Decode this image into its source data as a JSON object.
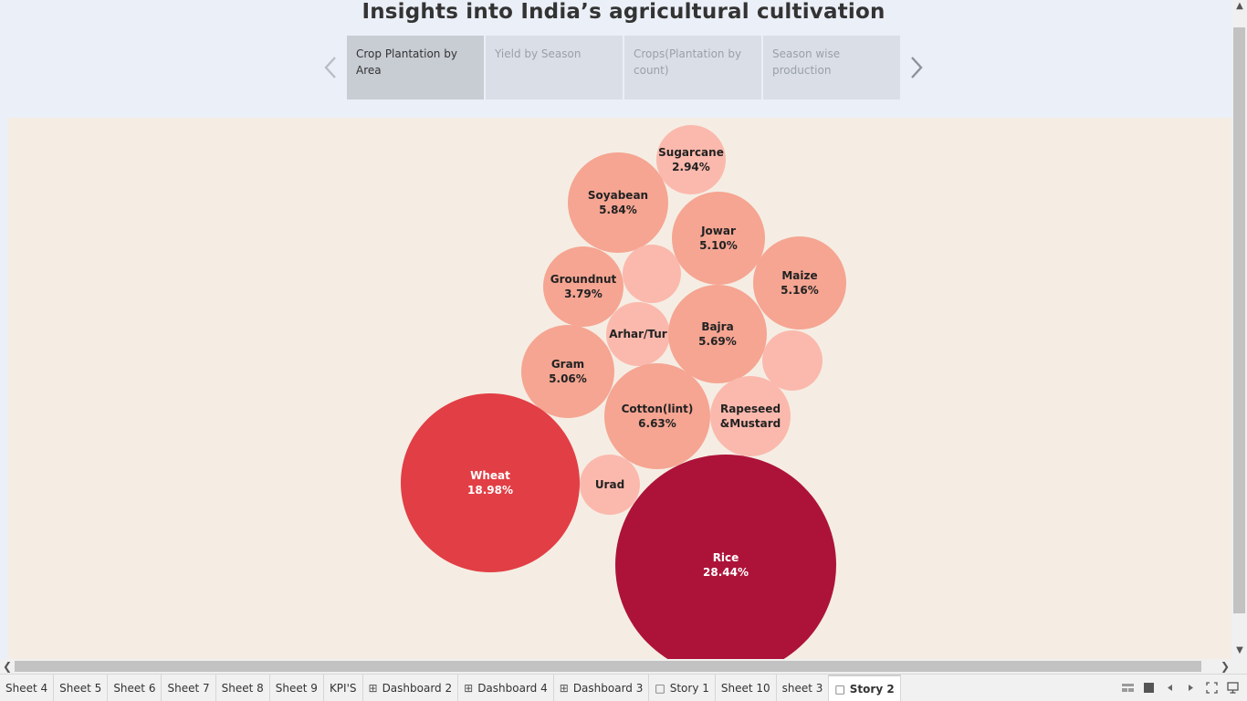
{
  "story": {
    "title": "Insights into India’s agricultural cultivation",
    "points": [
      {
        "label": "Crop Plantation by Area",
        "active": true
      },
      {
        "label": "Yield by Season",
        "active": false
      },
      {
        "label": "Crops(Plantation by count)",
        "active": false
      },
      {
        "label": "Season wise production",
        "active": false
      }
    ]
  },
  "chart_data": {
    "type": "packed-bubble",
    "title": "",
    "measure": "share of plantation area",
    "bubbles": [
      {
        "crop": "Sugarcane",
        "pct": "2.94%",
        "value": 2.94,
        "label_shown": true
      },
      {
        "crop": "Soyabean",
        "pct": "5.84%",
        "value": 5.84,
        "label_shown": true
      },
      {
        "crop": "Jowar",
        "pct": "5.10%",
        "value": 5.1,
        "label_shown": true
      },
      {
        "crop": "",
        "pct": "",
        "value": null,
        "label_shown": false
      },
      {
        "crop": "Maize",
        "pct": "5.16%",
        "value": 5.16,
        "label_shown": true
      },
      {
        "crop": "Groundnut",
        "pct": "3.79%",
        "value": 3.79,
        "label_shown": true
      },
      {
        "crop": "Arhar/Tur",
        "pct": "",
        "value": null,
        "label_shown": true
      },
      {
        "crop": "Bajra",
        "pct": "5.69%",
        "value": 5.69,
        "label_shown": true
      },
      {
        "crop": "",
        "pct": "",
        "value": null,
        "label_shown": false
      },
      {
        "crop": "Gram",
        "pct": "5.06%",
        "value": 5.06,
        "label_shown": true
      },
      {
        "crop": "Cotton(lint)",
        "pct": "6.63%",
        "value": 6.63,
        "label_shown": true
      },
      {
        "crop": "Rapeseed &Mustard",
        "pct": "",
        "value": null,
        "label_shown": true
      },
      {
        "crop": "Wheat",
        "pct": "18.98%",
        "value": 18.98,
        "label_shown": true
      },
      {
        "crop": "Urad",
        "pct": "",
        "value": null,
        "label_shown": true
      },
      {
        "crop": "Rice",
        "pct": "28.44%",
        "value": 28.44,
        "label_shown": true
      }
    ],
    "colors": {
      "low": "#fbb9ad",
      "mid": "#f5a592",
      "wheat": "#e23e45",
      "rice": "#ad1339",
      "label_dark": "#222222",
      "label_light": "#ffffff"
    }
  },
  "sheet_tabs": [
    {
      "label": "Sheet 4",
      "icon": "",
      "active": false
    },
    {
      "label": "Sheet 5",
      "icon": "",
      "active": false
    },
    {
      "label": "Sheet 6",
      "icon": "",
      "active": false
    },
    {
      "label": "Sheet 7",
      "icon": "",
      "active": false
    },
    {
      "label": "Sheet 8",
      "icon": "",
      "active": false
    },
    {
      "label": "Sheet 9",
      "icon": "",
      "active": false
    },
    {
      "label": "KPI'S",
      "icon": "",
      "active": false
    },
    {
      "label": "Dashboard 2",
      "icon": "dashboard-icon",
      "active": false
    },
    {
      "label": "Dashboard 4",
      "icon": "dashboard-icon",
      "active": false
    },
    {
      "label": "Dashboard 3",
      "icon": "dashboard-icon",
      "active": false
    },
    {
      "label": "Story 1",
      "icon": "story-icon",
      "active": false
    },
    {
      "label": "Sheet 10",
      "icon": "",
      "active": false
    },
    {
      "label": "sheet 3",
      "icon": "",
      "active": false
    },
    {
      "label": "Story 2",
      "icon": "story-icon",
      "active": true
    }
  ],
  "tools": [
    "show-sheet-sorter-icon",
    "show-filmstrip-icon",
    "previous-sheet-icon",
    "next-sheet-icon",
    "fit-to-window-icon",
    "presentation-mode-icon"
  ]
}
